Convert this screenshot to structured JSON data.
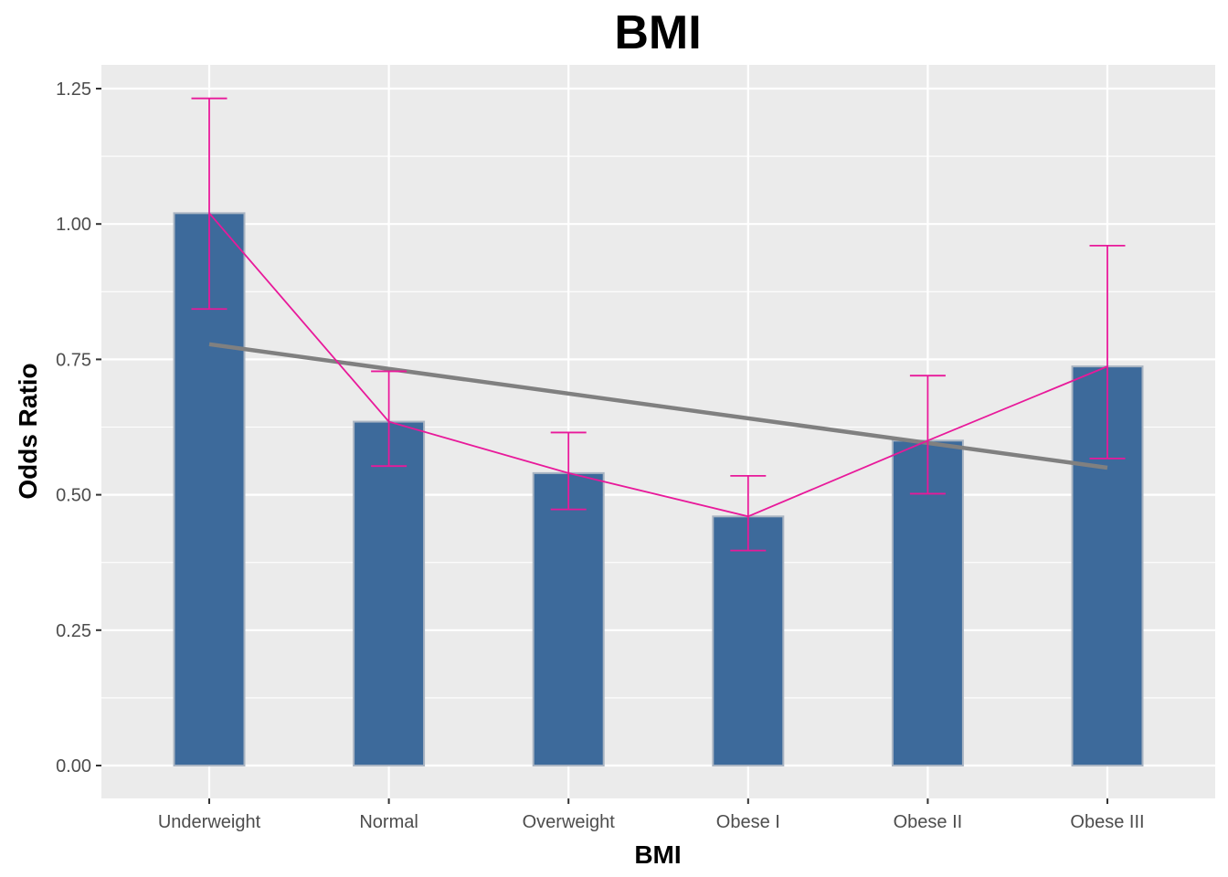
{
  "chart_data": {
    "type": "bar",
    "title": "BMI",
    "xlabel": "BMI",
    "ylabel": "Odds Ratio",
    "categories": [
      "Underweight",
      "Normal",
      "Overweight",
      "Obese I",
      "Obese II",
      "Obese III"
    ],
    "values": [
      1.02,
      0.635,
      0.54,
      0.46,
      0.6,
      0.737
    ],
    "error_bars": {
      "lower": [
        0.843,
        0.553,
        0.473,
        0.397,
        0.502,
        0.567
      ],
      "upper": [
        1.232,
        0.728,
        0.615,
        0.535,
        0.72,
        0.96
      ]
    },
    "connecting_line": [
      1.02,
      0.635,
      0.54,
      0.46,
      0.6,
      0.737
    ],
    "trend_line": {
      "start": 0.778,
      "end": 0.55
    },
    "y_ticks": [
      "0.00",
      "0.25",
      "0.50",
      "0.75",
      "1.00",
      "1.25"
    ],
    "ylim": [
      -0.06,
      1.29
    ],
    "grid": true,
    "colors": {
      "bar_fill": "#3d6a9b",
      "bar_stroke": "#a9b4c2",
      "error_bar": "#e8199a",
      "connecting_line": "#e8199a",
      "trend_line": "#808080",
      "panel_background": "#ebebeb",
      "grid": "#ffffff"
    }
  }
}
